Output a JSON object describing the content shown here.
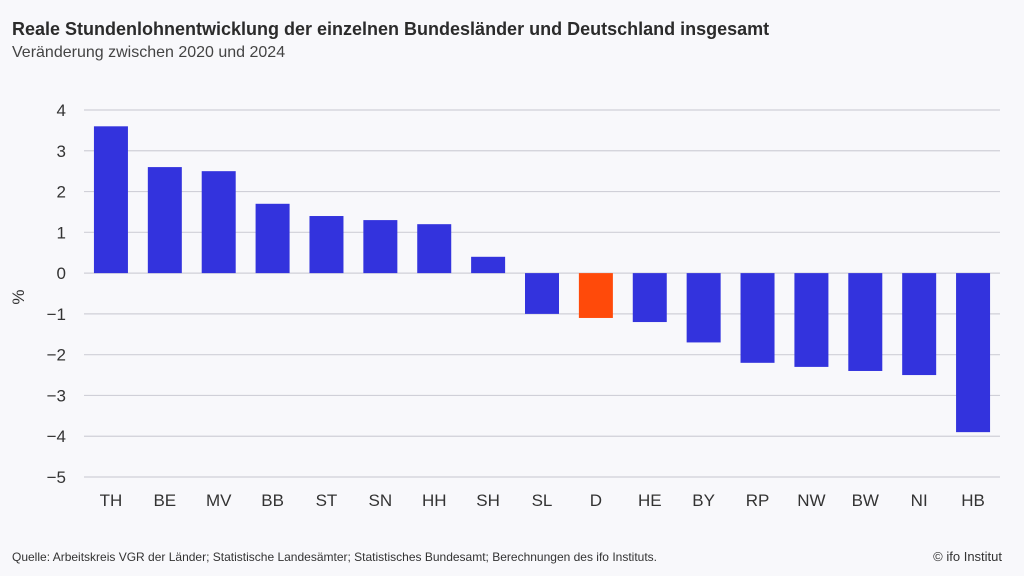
{
  "title": "Reale Stundenlohnentwicklung der einzelnen Bundesländer und Deutschland insgesamt",
  "subtitle": "Veränderung zwischen 2020 und 2024",
  "source": "Quelle: Arbeitskreis VGR der Länder; Statistische Landesämter; Statistisches Bundesamt; Berechnungen des ifo Instituts.",
  "copyright": "© ifo Institut",
  "colors": {
    "bar": "#3333dd",
    "highlight": "#ff4a0a",
    "grid": "#d0d0d8"
  },
  "chart_data": {
    "type": "bar",
    "title": "Reale Stundenlohnentwicklung der einzelnen Bundesländer und Deutschland insgesamt",
    "subtitle": "Veränderung zwischen 2020 und 2024",
    "ylabel": "%",
    "xlabel": "",
    "ylim": [
      -5,
      4
    ],
    "yticks": [
      4,
      3,
      2,
      1,
      0,
      -1,
      -2,
      -3,
      -4,
      -5
    ],
    "grid": true,
    "categories": [
      "TH",
      "BE",
      "MV",
      "BB",
      "ST",
      "SN",
      "HH",
      "SH",
      "SL",
      "D",
      "HE",
      "BY",
      "RP",
      "NW",
      "BW",
      "NI",
      "HB"
    ],
    "values": [
      3.6,
      2.6,
      2.5,
      1.7,
      1.4,
      1.3,
      1.2,
      0.4,
      -1.0,
      -1.1,
      -1.2,
      -1.7,
      -2.2,
      -2.3,
      -2.4,
      -2.5,
      -3.9
    ],
    "highlight": "D"
  }
}
